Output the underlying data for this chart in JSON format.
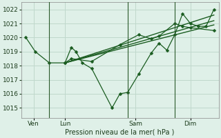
{
  "background_color": "#dff0e8",
  "grid_color": "#c0d8cc",
  "line_color": "#1a5c20",
  "title": "Pression niveau de la mer( hPa )",
  "ylim": [
    1014.3,
    1022.5
  ],
  "yticks": [
    1015,
    1016,
    1017,
    1018,
    1019,
    1020,
    1021,
    1022
  ],
  "xlim": [
    -0.3,
    12.3
  ],
  "xtick_labels": [
    "Ven",
    "Lun",
    "Sam",
    "Dim"
  ],
  "xtick_positions": [
    0.5,
    2.5,
    7.0,
    10.5
  ],
  "vline_positions": [
    1.5,
    6.5,
    9.5
  ],
  "series_main": {
    "x": [
      0.0,
      0.6,
      1.5,
      2.5,
      2.9,
      3.2,
      3.6,
      4.2,
      5.5,
      6.0,
      6.5,
      7.2,
      8.0,
      8.5,
      9.0,
      9.5,
      10.0,
      10.5,
      11.0,
      11.5,
      12.0
    ],
    "y": [
      1020.0,
      1019.0,
      1018.2,
      1018.2,
      1019.3,
      1019.0,
      1018.2,
      1017.8,
      1015.0,
      1016.0,
      1016.1,
      1017.4,
      1018.9,
      1019.6,
      1019.1,
      1020.2,
      1021.7,
      1021.0,
      1020.8,
      1020.8,
      1022.0
    ]
  },
  "series_second": {
    "x": [
      2.5,
      2.9,
      4.2,
      6.0,
      7.2,
      8.0,
      8.5,
      9.5,
      10.0,
      10.5,
      12.0
    ],
    "y": [
      1018.2,
      1018.5,
      1018.3,
      1019.5,
      1020.2,
      1019.9,
      1020.1,
      1021.0,
      1020.8,
      1020.7,
      1020.5
    ]
  },
  "series_straight": [
    {
      "x": [
        2.5,
        12.0
      ],
      "y": [
        1018.2,
        1021.6
      ]
    },
    {
      "x": [
        2.5,
        12.0
      ],
      "y": [
        1018.2,
        1021.2
      ]
    },
    {
      "x": [
        2.5,
        12.0
      ],
      "y": [
        1018.2,
        1020.9
      ]
    }
  ]
}
